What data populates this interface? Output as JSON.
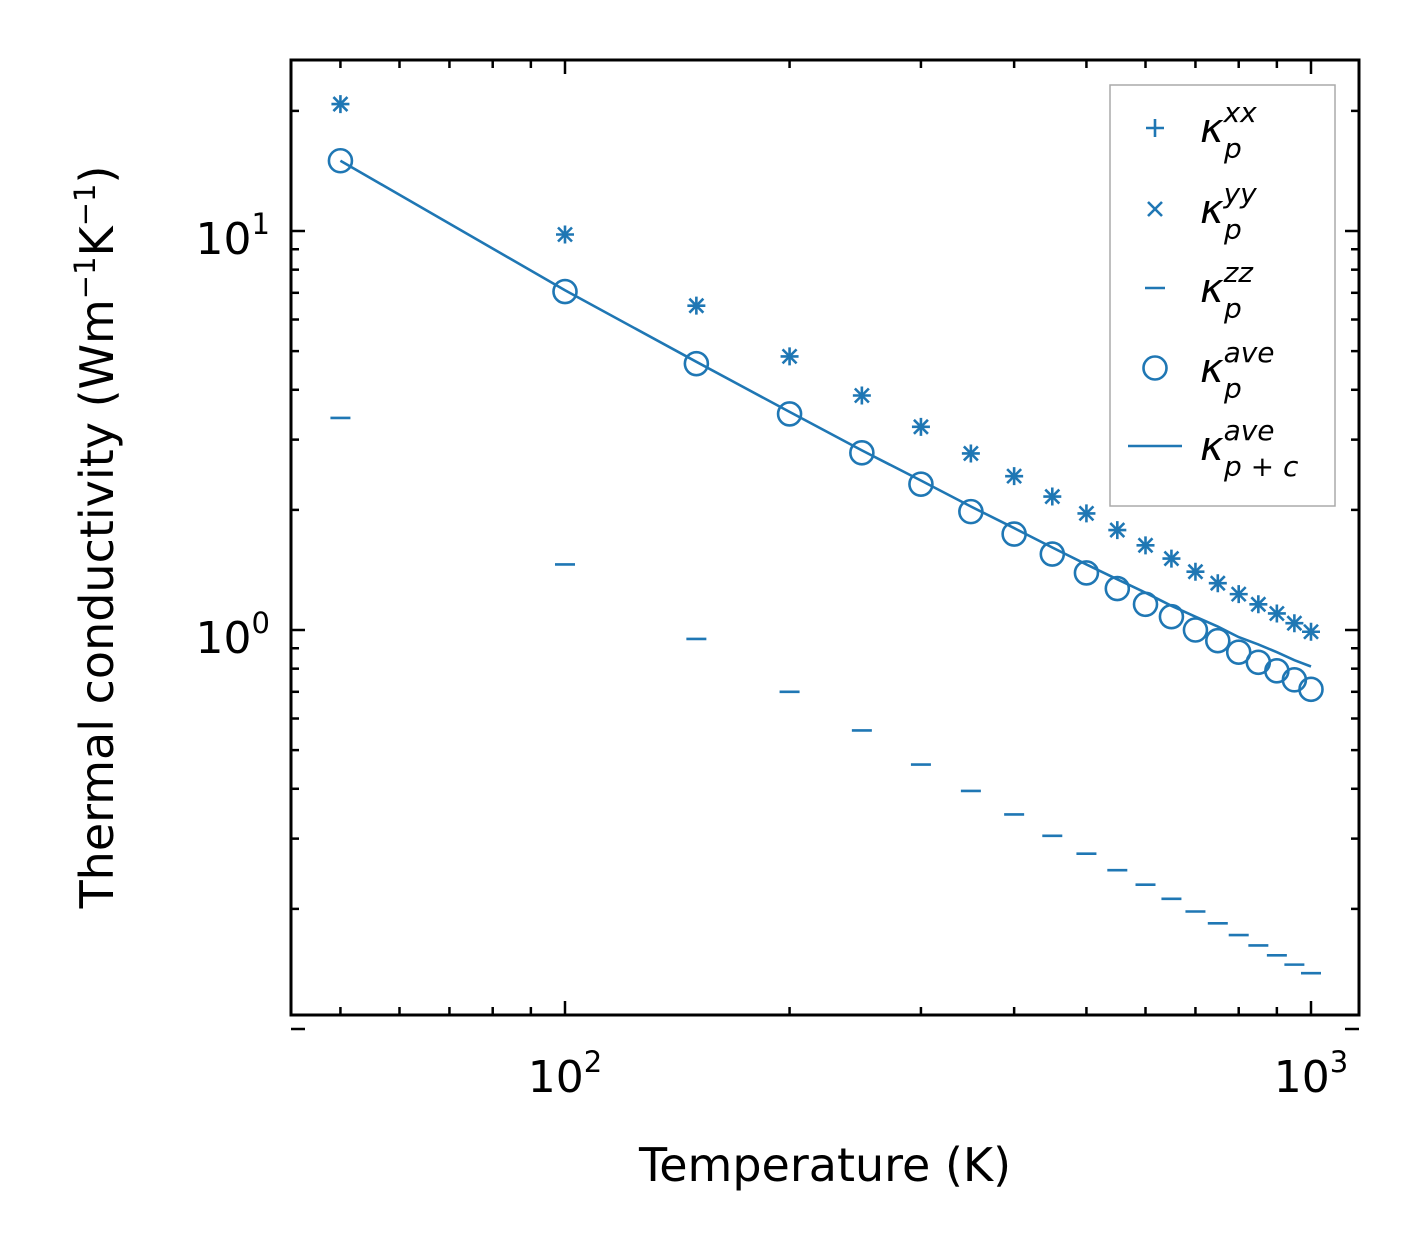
{
  "chart_data": {
    "type": "scatter",
    "title": "",
    "xlabel": "Temperature (K)",
    "ylabel": {
      "text": "Thermal conductivity (Wm",
      "exp1": "−1",
      "mid": "K",
      "exp2": "−1",
      "end": ")"
    },
    "xscale": "log",
    "yscale": "log",
    "xlim": [
      44,
      1070
    ],
    "ylim": [
      0.1,
      27
    ],
    "x_ticks": [
      {
        "base": "10",
        "exp": "2",
        "value": 100
      },
      {
        "base": "10",
        "exp": "3",
        "value": 1000
      }
    ],
    "y_ticks": [
      {
        "base": "10",
        "exp": "0",
        "value": 1
      },
      {
        "base": "10",
        "exp": "1",
        "value": 10
      }
    ],
    "color": "#1f77b4",
    "x": [
      50,
      100,
      150,
      200,
      250,
      300,
      350,
      400,
      450,
      500,
      550,
      600,
      650,
      700,
      750,
      800,
      850,
      900,
      950,
      1000
    ],
    "series": [
      {
        "name": "kappa_p^xx",
        "marker": "plus",
        "legend": {
          "base": "κ",
          "sup": "xx",
          "sub": "p"
        },
        "values": [
          20.8,
          9.8,
          6.5,
          4.85,
          3.87,
          3.23,
          2.77,
          2.43,
          2.16,
          1.96,
          1.78,
          1.63,
          1.51,
          1.4,
          1.31,
          1.23,
          1.16,
          1.1,
          1.04,
          0.99
        ]
      },
      {
        "name": "kappa_p^yy",
        "marker": "x",
        "legend": {
          "base": "κ",
          "sup": "yy",
          "sub": "p"
        },
        "values": [
          20.8,
          9.8,
          6.5,
          4.85,
          3.87,
          3.23,
          2.77,
          2.43,
          2.16,
          1.96,
          1.78,
          1.63,
          1.51,
          1.4,
          1.31,
          1.23,
          1.16,
          1.1,
          1.04,
          0.99
        ]
      },
      {
        "name": "kappa_p^zz",
        "marker": "hline",
        "legend": {
          "base": "κ",
          "sup": "zz",
          "sub": "p"
        },
        "values": [
          3.4,
          1.46,
          0.95,
          0.7,
          0.56,
          0.46,
          0.395,
          0.345,
          0.305,
          0.275,
          0.25,
          0.23,
          0.212,
          0.197,
          0.184,
          0.172,
          0.162,
          0.153,
          0.145,
          0.138
        ]
      },
      {
        "name": "kappa_p^ave",
        "marker": "circle",
        "legend": {
          "base": "κ",
          "sup": "ave",
          "sub": "p"
        },
        "values": [
          15.0,
          7.05,
          4.65,
          3.48,
          2.78,
          2.32,
          1.98,
          1.74,
          1.55,
          1.39,
          1.27,
          1.16,
          1.08,
          1.0,
          0.94,
          0.88,
          0.83,
          0.79,
          0.75,
          0.71
        ]
      },
      {
        "name": "kappa_p+c^ave",
        "marker": "line",
        "legend": {
          "base": "κ",
          "sup": "ave",
          "sub": "p + c"
        },
        "values": [
          15.0,
          7.1,
          4.7,
          3.52,
          2.82,
          2.37,
          2.04,
          1.8,
          1.61,
          1.46,
          1.34,
          1.24,
          1.15,
          1.08,
          1.02,
          0.96,
          0.92,
          0.88,
          0.84,
          0.81
        ]
      }
    ],
    "legend_position": "top-right"
  }
}
